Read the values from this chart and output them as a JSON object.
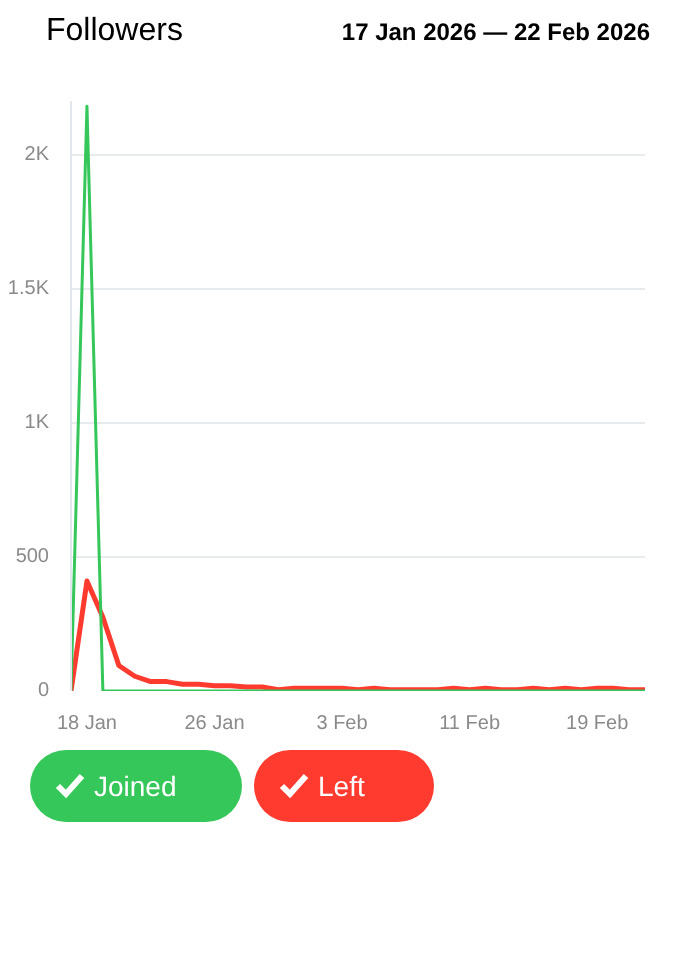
{
  "chart_data": {
    "type": "line",
    "title": "Followers",
    "subtitle": "17 Jan 2026 — 22 Feb 2026",
    "x": [
      "2026-01-17",
      "2026-01-18",
      "2026-01-19",
      "2026-01-20",
      "2026-01-21",
      "2026-01-22",
      "2026-01-23",
      "2026-01-24",
      "2026-01-25",
      "2026-01-26",
      "2026-01-27",
      "2026-01-28",
      "2026-01-29",
      "2026-01-30",
      "2026-01-31",
      "2026-02-01",
      "2026-02-02",
      "2026-02-03",
      "2026-02-04",
      "2026-02-05",
      "2026-02-06",
      "2026-02-07",
      "2026-02-08",
      "2026-02-09",
      "2026-02-10",
      "2026-02-11",
      "2026-02-12",
      "2026-02-13",
      "2026-02-14",
      "2026-02-15",
      "2026-02-16",
      "2026-02-17",
      "2026-02-18",
      "2026-02-19",
      "2026-02-20",
      "2026-02-21",
      "2026-02-22"
    ],
    "series": [
      {
        "name": "Joined",
        "color": "#35c759",
        "values": [
          0,
          2180,
          0,
          0,
          0,
          0,
          0,
          0,
          0,
          0,
          0,
          0,
          0,
          0,
          0,
          0,
          0,
          0,
          0,
          0,
          0,
          0,
          0,
          0,
          0,
          0,
          0,
          0,
          0,
          0,
          0,
          0,
          0,
          0,
          0,
          0,
          0
        ]
      },
      {
        "name": "Left",
        "color": "#ff3b30",
        "values": [
          0,
          410,
          275,
          95,
          55,
          35,
          35,
          25,
          25,
          20,
          20,
          15,
          15,
          5,
          10,
          10,
          10,
          10,
          5,
          10,
          5,
          5,
          5,
          5,
          10,
          5,
          10,
          5,
          5,
          10,
          5,
          10,
          5,
          10,
          10,
          5,
          5
        ]
      }
    ],
    "xlim": [
      "2026-01-17",
      "2026-02-22"
    ],
    "xticks": [
      {
        "value": "2026-01-18",
        "label": "18 Jan"
      },
      {
        "value": "2026-01-26",
        "label": "26 Jan"
      },
      {
        "value": "2026-02-03",
        "label": "3 Feb"
      },
      {
        "value": "2026-02-11",
        "label": "11 Feb"
      },
      {
        "value": "2026-02-19",
        "label": "19 Feb"
      }
    ],
    "ylim": [
      0,
      2200
    ],
    "yticks": [
      0,
      500,
      {
        "value": 1000,
        "label": "1K"
      },
      {
        "value": 1500,
        "label": "1.5K"
      },
      {
        "value": 2000,
        "label": "2K"
      }
    ],
    "grid": "y",
    "legend": "bottom",
    "line_style": "solid"
  }
}
